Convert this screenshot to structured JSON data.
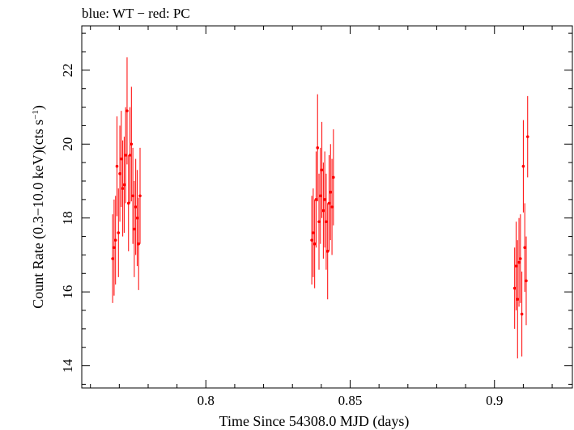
{
  "chart_data": {
    "type": "scatter",
    "title": "blue: WT − red: PC",
    "xlabel": "Time Since 54308.0 MJD (days)",
    "ylabel_parts": [
      "Count Rate (0.3−10.0 keV)(cts s",
      "−1",
      ")"
    ],
    "xlim": [
      0.757,
      0.927
    ],
    "ylim": [
      13.4,
      23.2
    ],
    "x_ticks": [
      0.8,
      0.85,
      0.9
    ],
    "x_tick_labels": [
      "0.8",
      "0.85",
      "0.9"
    ],
    "y_ticks": [
      14,
      16,
      18,
      20,
      22
    ],
    "y_tick_labels": [
      "14",
      "16",
      "18",
      "20",
      "22"
    ],
    "grid": false,
    "series": [
      {
        "color": "#ff0000",
        "x": [
          0.7677,
          0.7682,
          0.7687,
          0.7692,
          0.7697,
          0.7702,
          0.7707,
          0.7712,
          0.7717,
          0.7722,
          0.7727,
          0.7732,
          0.7737,
          0.7742,
          0.7747,
          0.7752,
          0.7757,
          0.7762,
          0.7767,
          0.7772,
          0.8367,
          0.8372,
          0.8377,
          0.8382,
          0.8387,
          0.8392,
          0.8397,
          0.8402,
          0.8407,
          0.8412,
          0.8417,
          0.8422,
          0.8427,
          0.8432,
          0.8437,
          0.8442,
          0.907,
          0.9075,
          0.908,
          0.9085,
          0.909,
          0.9095,
          0.91,
          0.9105,
          0.911,
          0.9115
        ],
        "y": [
          16.9,
          17.2,
          17.4,
          19.4,
          17.6,
          19.2,
          19.6,
          18.8,
          18.9,
          19.7,
          20.9,
          18.4,
          19.7,
          20.0,
          18.6,
          17.7,
          18.3,
          18.0,
          17.3,
          18.6,
          17.4,
          17.6,
          17.3,
          18.5,
          19.9,
          17.9,
          18.6,
          19.3,
          18.2,
          18.5,
          17.9,
          17.1,
          18.4,
          18.7,
          18.3,
          19.1,
          16.1,
          16.7,
          15.8,
          16.8,
          16.9,
          15.4,
          19.4,
          17.2,
          16.3,
          20.2
        ],
        "yerr": [
          1.2,
          1.3,
          1.2,
          1.35,
          1.2,
          1.3,
          1.3,
          1.3,
          1.3,
          1.3,
          1.45,
          1.3,
          1.3,
          1.55,
          1.3,
          1.3,
          1.3,
          1.3,
          1.25,
          1.3,
          1.2,
          1.2,
          1.2,
          1.3,
          1.45,
          1.3,
          1.3,
          1.3,
          1.3,
          1.3,
          1.3,
          1.3,
          1.3,
          1.3,
          1.3,
          1.3,
          1.1,
          1.2,
          1.6,
          1.2,
          1.2,
          1.15,
          1.25,
          1.2,
          1.2,
          1.1
        ]
      }
    ]
  }
}
